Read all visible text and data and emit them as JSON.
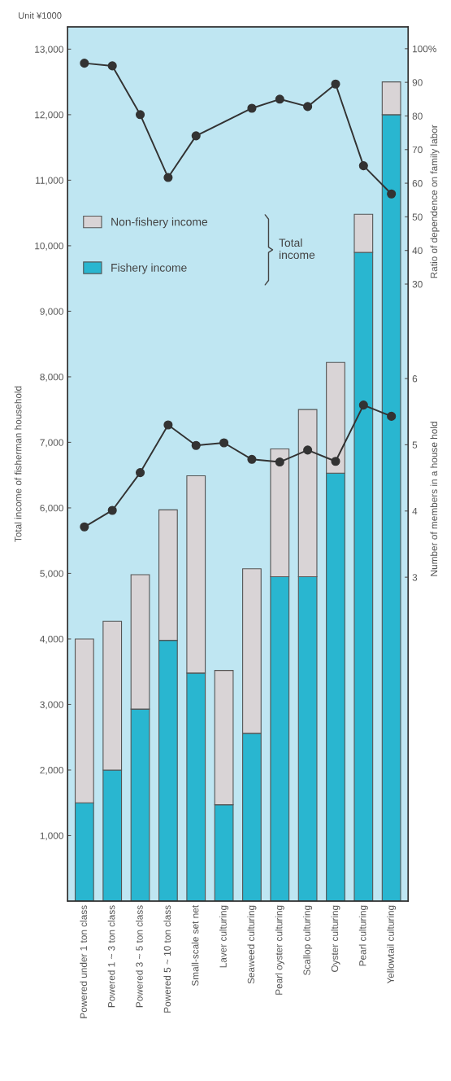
{
  "chart_data": {
    "type": "bar",
    "stacked": true,
    "categories": [
      "Powered under 1 ton class",
      "Powered 1 ~ 3 ton class",
      "Powered 3 ~ 5 ton class",
      "Powered 5 ~ 10 ton class",
      "Small-scale set net",
      "Laver culturing",
      "Seaweed culturing",
      "Pearl oyster culturing",
      "Scallop culturing",
      "Oyster culturing",
      "Pearl culturing",
      "Yellowtail culturing"
    ],
    "series": [
      {
        "name": "Fishery income",
        "color": "#29b6d0",
        "values": [
          1500,
          2000,
          2930,
          3980,
          3480,
          1470,
          2560,
          4950,
          4950,
          6530,
          9900,
          12000
        ]
      },
      {
        "name": "Non-fishery income",
        "color": "#d9d4d6",
        "values": [
          2500,
          2270,
          2050,
          1990,
          3010,
          2050,
          2510,
          1950,
          2550,
          1690,
          580,
          500
        ]
      },
      {
        "type": "line",
        "axis": "y2",
        "color": "#333333",
        "values": [
          95.7,
          94.9,
          80.4,
          61.7,
          74.1,
          null,
          82.3,
          85.0,
          82.8,
          89.5,
          65.2,
          56.8
        ]
      },
      {
        "type": "line",
        "axis": "y3",
        "color": "#333333",
        "values": [
          3.76,
          4.01,
          4.58,
          5.3,
          4.99,
          5.03,
          4.78,
          4.74,
          4.92,
          4.75,
          5.6,
          5.43
        ]
      }
    ],
    "ylabel": "Total income of fisherman household",
    "y2label": "Ratio of dependence on family labor",
    "y3label": "Number of members in a house hold",
    "ylim": [
      0,
      13340
    ],
    "yticks": [
      {
        "value": 1000,
        "label": "1,000"
      },
      {
        "value": 2000,
        "label": "2,000"
      },
      {
        "value": 3000,
        "label": "3,000"
      },
      {
        "value": 4000,
        "label": "4,000"
      },
      {
        "value": 5000,
        "label": "5,000"
      },
      {
        "value": 6000,
        "label": "6,000"
      },
      {
        "value": 7000,
        "label": "7,000"
      },
      {
        "value": 8000,
        "label": "8,000"
      },
      {
        "value": 9000,
        "label": "9,000"
      },
      {
        "value": 10000,
        "label": "10,000"
      },
      {
        "value": 11000,
        "label": "11,000"
      },
      {
        "value": 12000,
        "label": "12,000"
      },
      {
        "value": 13000,
        "label": "13,000"
      }
    ],
    "y2lim": [
      -153.5,
      106.5
    ],
    "y2ticks": [
      30,
      40,
      50,
      60,
      70,
      80,
      90,
      {
        "value": 100,
        "label": "100%"
      }
    ],
    "y3lim": [
      -1.89,
      11.31
    ],
    "y3ticks": [
      3,
      4,
      5,
      6
    ],
    "marker": "circle",
    "legend": "top left",
    "grid": false,
    "annotations": [
      "Unit ¥1000",
      "Total\nincome"
    ]
  }
}
